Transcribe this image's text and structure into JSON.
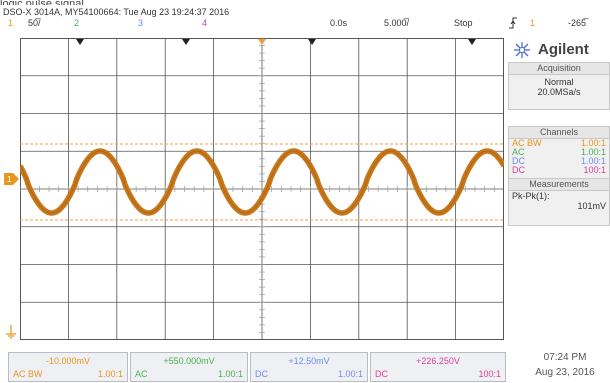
{
  "header": {
    "cropped_text": "logic pulse signal",
    "title": "DSO-X 3014A, MY54100664: Tue Aug 23 19:24:37 2016",
    "ch1_num": "1",
    "ch1_scale": "50̅/",
    "ch2_num": "2",
    "ch3_num": "3",
    "ch4_num": "4",
    "time_delay": "0.0s",
    "time_scale": "5.000̅/",
    "run_state": "Stop",
    "trigger_icon": "trigger-edge-icon",
    "trigger_channel": "1",
    "trigger_level": "-265̅"
  },
  "brand": {
    "name": "Agilent",
    "logo": "agilent-spark-logo"
  },
  "acquisition": {
    "title": "Acquisition",
    "mode": "Normal",
    "rate": "20.0MSa/s"
  },
  "channels_panel": {
    "title": "Channels",
    "rows": [
      {
        "coupling": "AC BW",
        "probe": "1.00:1",
        "color": "#e8961e"
      },
      {
        "coupling": "AC",
        "probe": "1.00:1",
        "color": "#4caf50"
      },
      {
        "coupling": "DC",
        "probe": "1.00:1",
        "color": "#6d8df0"
      },
      {
        "coupling": "DC",
        "probe": "100:1",
        "color": "#e0409a"
      }
    ]
  },
  "measurements": {
    "title": "Measurements",
    "label": "Pk-Pk(1):",
    "value": "101mV"
  },
  "bottom": [
    {
      "offset": "-10.000mV",
      "coupling": "AC",
      "bw": "BW",
      "probe": "1.00:1",
      "color": "#e8961e"
    },
    {
      "offset": "+550.000mV",
      "coupling": "AC",
      "bw": "",
      "probe": "1.00:1",
      "color": "#4caf50"
    },
    {
      "offset": "+12.50mV",
      "coupling": "DC",
      "bw": "",
      "probe": "1.00:1",
      "color": "#6d8df0"
    },
    {
      "offset": "+226.250V",
      "coupling": "DC",
      "bw": "",
      "probe": "100:1",
      "color": "#e0409a"
    }
  ],
  "clock": {
    "time": "07:24 PM",
    "date": "Aug 23, 2016"
  },
  "markers": {
    "ch1_label": "1",
    "ground_label": "1"
  },
  "colors": {
    "ch1": "#e8961e",
    "trace": "#c8781a",
    "cursor": "#f0a040",
    "grid": "#555555",
    "grid_minor": "#999999"
  },
  "waveform": {
    "cycles": 5,
    "period_divisions": 2,
    "amplitude_pkpk": "101mV",
    "shape": "triangle-like"
  }
}
